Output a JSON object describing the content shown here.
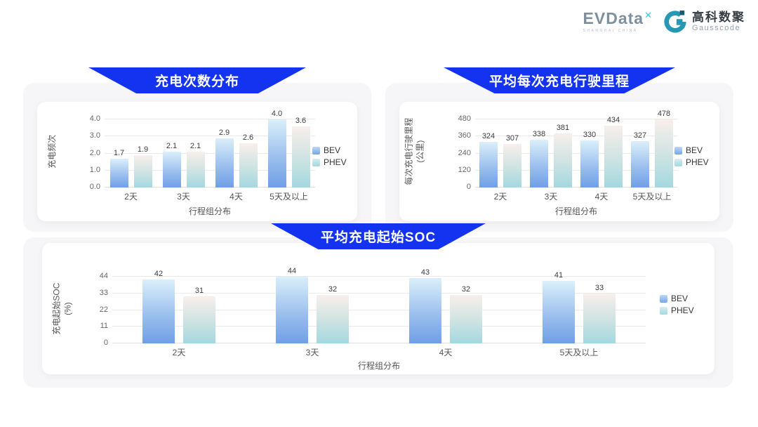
{
  "logo": {
    "evdata": "EVData",
    "evdata_mark": "✕",
    "evdata_tagline": "SHANGHAI CHINA",
    "gausscode_cn": "高科数聚",
    "gausscode_en": "Gausscode"
  },
  "colors": {
    "banner_blue": "#1433f0",
    "bev_gradient_top": "#dbeffa",
    "bev_gradient_bottom": "#6f9fe6",
    "phev_gradient_top": "#f8efec",
    "phev_gradient_bottom": "#a3d8df",
    "panel_bg": "#f6f6f8",
    "gridline": "#eaeaec"
  },
  "chart_data": [
    {
      "type": "bar",
      "title": "充电次数分布",
      "xlabel": "行程组分布",
      "ylabel": "充电频次",
      "ylabel_lines": [
        "充电频次"
      ],
      "categories": [
        "2天",
        "3天",
        "4天",
        "5天及以上"
      ],
      "yticks_top_down": [
        "4.0",
        "3.0",
        "2.0",
        "1.0",
        "0.0"
      ],
      "ylim": [
        0,
        4.0
      ],
      "grid": true,
      "legend_position": "right",
      "series": [
        {
          "name": "BEV",
          "values": [
            1.7,
            2.1,
            2.9,
            4.0
          ],
          "labels": [
            "1.7",
            "2.1",
            "2.9",
            "4.0"
          ]
        },
        {
          "name": "PHEV",
          "values": [
            1.9,
            2.1,
            2.6,
            3.6
          ],
          "labels": [
            "1.9",
            "2.1",
            "2.6",
            "3.6"
          ]
        }
      ]
    },
    {
      "type": "bar",
      "title": "平均每次充电行驶里程",
      "xlabel": "行程组分布",
      "ylabel": "每次充电行驶里程(公里)",
      "ylabel_lines": [
        "每次充电行驶里程",
        "(公里)"
      ],
      "categories": [
        "2天",
        "3天",
        "4天",
        "5天及以上"
      ],
      "yticks_top_down": [
        "480",
        "360",
        "240",
        "120",
        "0"
      ],
      "ylim": [
        0,
        480
      ],
      "grid": true,
      "legend_position": "right",
      "series": [
        {
          "name": "BEV",
          "values": [
            324,
            338,
            330,
            327
          ],
          "labels": [
            "324",
            "338",
            "330",
            "327"
          ]
        },
        {
          "name": "PHEV",
          "values": [
            307,
            381,
            434,
            478
          ],
          "labels": [
            "307",
            "381",
            "434",
            "478"
          ]
        }
      ]
    },
    {
      "type": "bar",
      "title": "平均充电起始SOC",
      "xlabel": "行程组分布",
      "ylabel": "充电起始SOC(%)",
      "ylabel_lines": [
        "充电起始SOC",
        "(%)"
      ],
      "categories": [
        "2天",
        "3天",
        "4天",
        "5天及以上"
      ],
      "yticks_top_down": [
        "44",
        "33",
        "22",
        "11",
        "0"
      ],
      "ylim": [
        0,
        44
      ],
      "grid": true,
      "legend_position": "right",
      "series": [
        {
          "name": "BEV",
          "values": [
            42,
            44,
            43,
            41
          ],
          "labels": [
            "42",
            "44",
            "43",
            "41"
          ]
        },
        {
          "name": "PHEV",
          "values": [
            31,
            32,
            32,
            33
          ],
          "labels": [
            "31",
            "32",
            "32",
            "33"
          ]
        }
      ]
    }
  ]
}
